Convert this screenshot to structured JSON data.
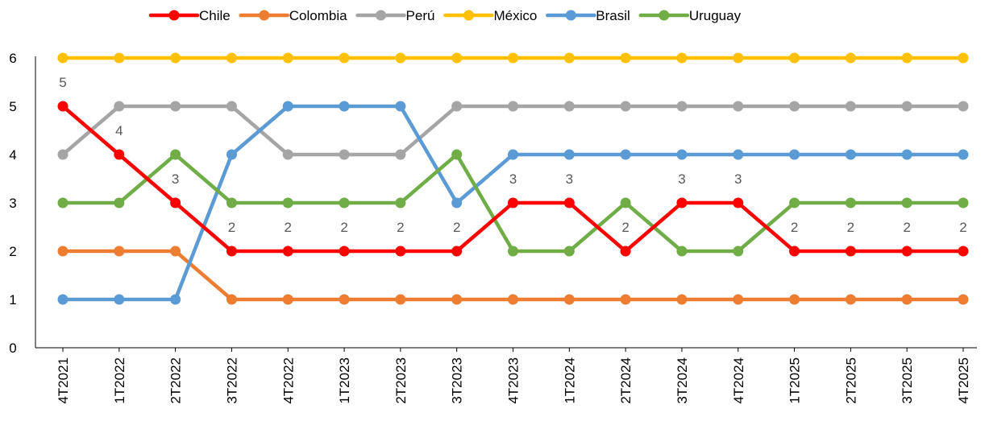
{
  "chart_data": {
    "type": "line",
    "title": "",
    "xlabel": "",
    "ylabel": "",
    "ylim": [
      0,
      6
    ],
    "yticks": [
      0,
      1,
      2,
      3,
      4,
      5,
      6
    ],
    "grid": false,
    "legend_position": "top",
    "categories": [
      "4T2021",
      "1T2022",
      "2T2022",
      "3T2022",
      "4T2022",
      "1T2023",
      "2T2023",
      "3T2023",
      "4T2023",
      "1T2024",
      "2T2024",
      "3T2024",
      "4T2024",
      "1T2025",
      "2T2025",
      "3T2025",
      "4T2025"
    ],
    "series": [
      {
        "name": "Chile",
        "color": "#ff0000",
        "values": [
          5,
          4,
          3,
          2,
          2,
          2,
          2,
          2,
          3,
          3,
          2,
          3,
          3,
          2,
          2,
          2,
          2
        ]
      },
      {
        "name": "Colombia",
        "color": "#ed7d31",
        "values": [
          2,
          2,
          2,
          1,
          1,
          1,
          1,
          1,
          1,
          1,
          1,
          1,
          1,
          1,
          1,
          1,
          1
        ]
      },
      {
        "name": "Perú",
        "color": "#a5a5a5",
        "values": [
          4,
          5,
          5,
          5,
          4,
          4,
          4,
          5,
          5,
          5,
          5,
          5,
          5,
          5,
          5,
          5,
          5
        ]
      },
      {
        "name": "México",
        "color": "#ffc000",
        "values": [
          6,
          6,
          6,
          6,
          6,
          6,
          6,
          6,
          6,
          6,
          6,
          6,
          6,
          6,
          6,
          6,
          6
        ]
      },
      {
        "name": "Brasil",
        "color": "#5b9bd5",
        "values": [
          1,
          1,
          1,
          4,
          5,
          5,
          5,
          3,
          4,
          4,
          4,
          4,
          4,
          4,
          4,
          4,
          4
        ]
      },
      {
        "name": "Uruguay",
        "color": "#70ad47",
        "values": [
          3,
          3,
          4,
          3,
          3,
          3,
          3,
          4,
          2,
          2,
          3,
          2,
          2,
          3,
          3,
          3,
          3
        ]
      }
    ],
    "data_labels": {
      "series": "Chile",
      "values": [
        "5",
        "4",
        "3",
        "2",
        "2",
        "2",
        "2",
        "2",
        "3",
        "3",
        "2",
        "3",
        "3",
        "2",
        "2",
        "2",
        "2"
      ]
    }
  }
}
